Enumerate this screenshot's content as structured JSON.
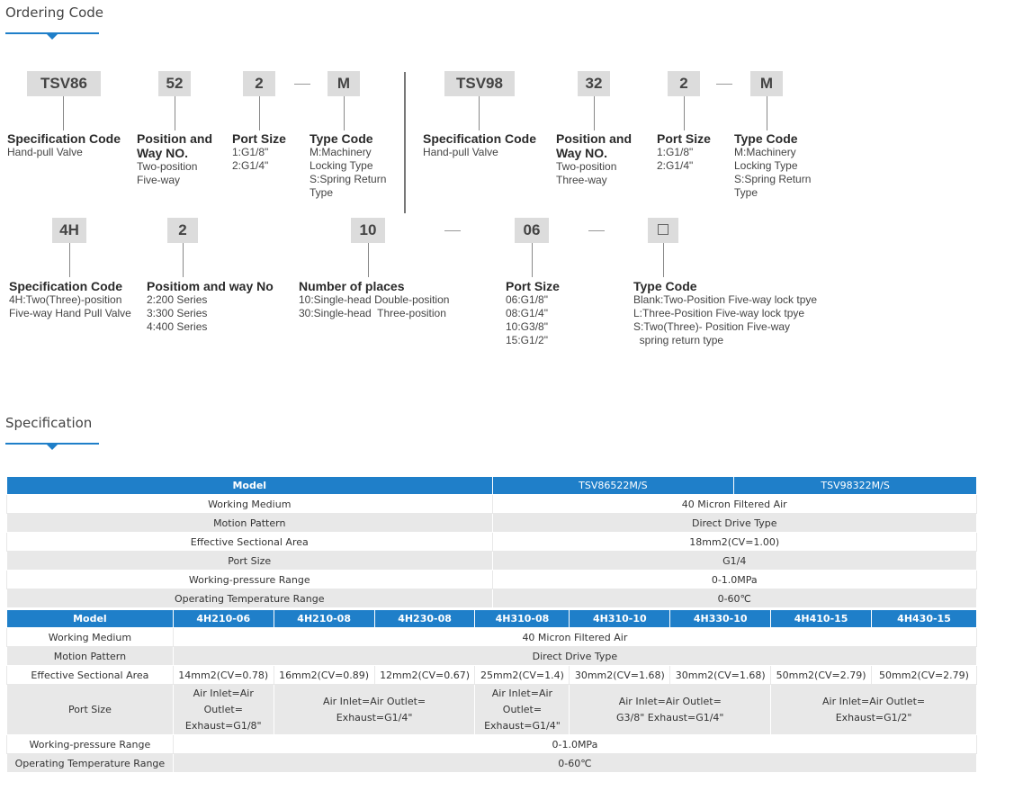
{
  "sections": {
    "ordering_title": "Ordering Code",
    "spec_title": "Specification"
  },
  "tsv86": {
    "codes": [
      "TSV86",
      "52",
      "2",
      "M"
    ],
    "spec": {
      "h": "Specification Code",
      "d": [
        "Hand-pull Valve"
      ]
    },
    "pos": {
      "h": [
        "Position and",
        "Way NO."
      ],
      "d": [
        "Two-position",
        "Five-way"
      ]
    },
    "port": {
      "h": "Port Size",
      "d": [
        "1:G1/8\"",
        "2:G1/4\""
      ]
    },
    "type": {
      "h": "Type Code",
      "d": [
        "M:Machinery",
        "Locking Type",
        "S:Spring Return",
        "Type"
      ]
    }
  },
  "tsv98": {
    "codes": [
      "TSV98",
      "32",
      "2",
      "M"
    ],
    "spec": {
      "h": "Specification Code",
      "d": [
        "Hand-pull Valve"
      ]
    },
    "pos": {
      "h": [
        "Position and",
        "Way NO."
      ],
      "d": [
        "Two-position",
        "Three-way"
      ]
    },
    "port": {
      "h": "Port Size",
      "d": [
        "1:G1/8\"",
        "2:G1/4\""
      ]
    },
    "type": {
      "h": "Type Code",
      "d": [
        "M:Machinery",
        "Locking Type",
        "S:Spring Return",
        "Type"
      ]
    }
  },
  "h4": {
    "codes": [
      "4H",
      "2",
      "10",
      "06"
    ],
    "spec": {
      "h": "Specification Code",
      "d": [
        "4H:Two(Three)-position",
        "Five-way Hand Pull Valve"
      ]
    },
    "pos": {
      "h": "Positiom and way No",
      "d": [
        "2:200 Series",
        "3:300 Series",
        "4:400 Series"
      ]
    },
    "places": {
      "h": "Number of places",
      "d": [
        "10:Single-head Double-position",
        "30:Single-head  Three-position"
      ]
    },
    "port": {
      "h": "Port Size",
      "d": [
        "06:G1/8\"",
        "08:G1/4\"",
        "10:G3/8\"",
        "15:G1/2\""
      ]
    },
    "type": {
      "h": "Type Code",
      "d": [
        "Blank:Two-Position Five-way lock tpye",
        "L:Three-Position Five-way lock tpye",
        "S:Two(Three)- Position Five-way",
        "  spring return type"
      ]
    }
  },
  "table1": {
    "header": [
      "Model",
      "TSV86522M/S",
      "TSV98322M/S"
    ],
    "rows": [
      [
        "Working Medium",
        "40 Micron Filtered Air"
      ],
      [
        "Motion Pattern",
        "Direct Drive Type"
      ],
      [
        "Effective Sectional Area",
        "18mm2(CV=1.00)"
      ],
      [
        "Port Size",
        "G1/4"
      ],
      [
        "Working-pressure Range",
        "0-1.0MPa"
      ],
      [
        "Operating Temperature Range",
        "0-60℃"
      ]
    ]
  },
  "table2": {
    "header": [
      "Model",
      "4H210-06",
      "4H210-08",
      "4H230-08",
      "4H310-08",
      "4H310-10",
      "4H330-10",
      "4H410-15",
      "4H430-15"
    ],
    "medium": [
      "Working Medium",
      "40 Micron Filtered Air"
    ],
    "motion": [
      "Motion Pattern",
      "Direct Drive Type"
    ],
    "area": [
      "Effective Sectional Area",
      "14mm2(CV=0.78)",
      "16mm2(CV=0.89)",
      "12mm2(CV=0.67)",
      "25mm2(CV=1.4)",
      "30mm2(CV=1.68)",
      "30mm2(CV=1.68)",
      "50mm2(CV=2.79)",
      "50mm2(CV=2.79)"
    ],
    "port": {
      "label": "Port Size",
      "c1": [
        "Air Inlet=Air",
        "Outlet=",
        "Exhaust=G1/8\""
      ],
      "c2": [
        "Air Inlet=Air Outlet=",
        "Exhaust=G1/4\""
      ],
      "c3": [
        "Air Inlet=Air",
        "Outlet=",
        "Exhaust=G1/4\""
      ],
      "c4": [
        "Air Inlet=Air Outlet=",
        "G3/8\" Exhaust=G1/4\""
      ],
      "c5": [
        "Air Inlet=Air Outlet=",
        "Exhaust=G1/2\""
      ]
    },
    "pressure": [
      "Working-pressure Range",
      "0-1.0MPa"
    ],
    "temp": [
      "Operating Temperature Range",
      "0-60℃"
    ]
  }
}
